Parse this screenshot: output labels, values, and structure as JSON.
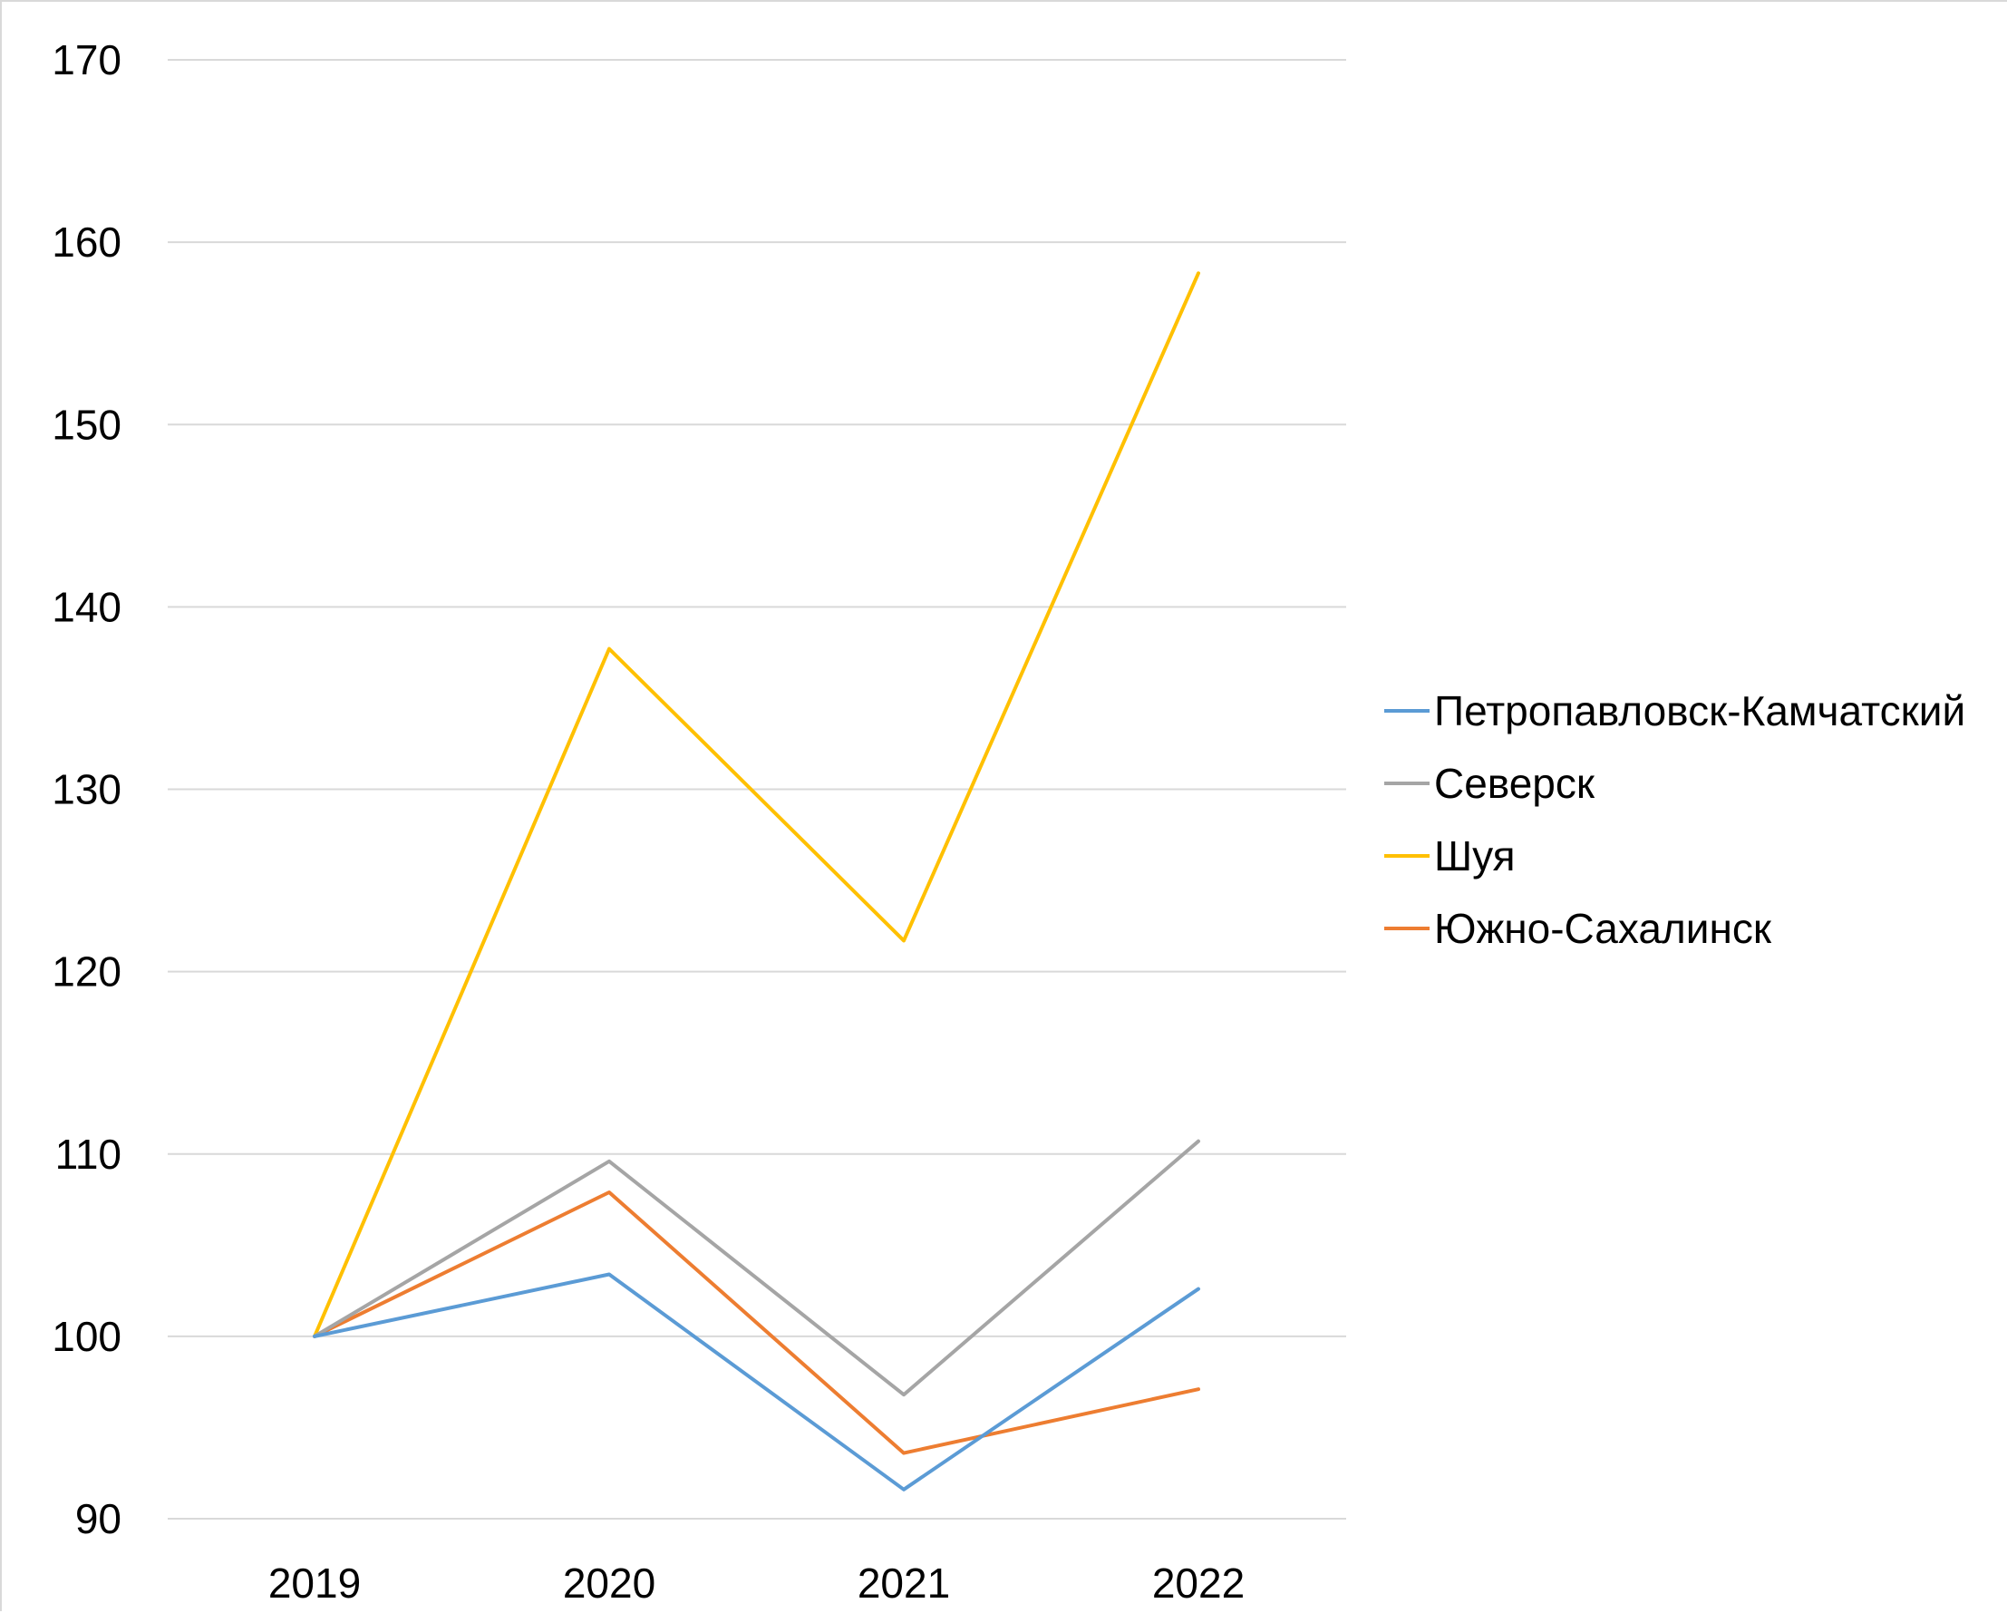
{
  "chart_data": {
    "type": "line",
    "title": "",
    "xlabel": "",
    "ylabel": "",
    "categories": [
      "2019",
      "2020",
      "2021",
      "2022"
    ],
    "y_ticks": [
      "90",
      "100",
      "110",
      "120",
      "130",
      "140",
      "150",
      "160",
      "170"
    ],
    "ylim": [
      90,
      170
    ],
    "grid": "horizontal",
    "legend_position": "right",
    "series": [
      {
        "name": "Петропавловск-Камчатский",
        "color": "#5B9BD5",
        "values": [
          100,
          103.4,
          91.6,
          102.6
        ]
      },
      {
        "name": "Северск",
        "color": "#A5A5A5",
        "values": [
          100,
          109.6,
          96.8,
          110.7
        ]
      },
      {
        "name": "Шуя",
        "color": "#FFC000",
        "values": [
          100,
          137.7,
          121.7,
          158.3
        ]
      },
      {
        "name": "Южно-Сахалинск",
        "color": "#ED7D31",
        "values": [
          100,
          107.9,
          93.6,
          97.1
        ]
      }
    ]
  }
}
